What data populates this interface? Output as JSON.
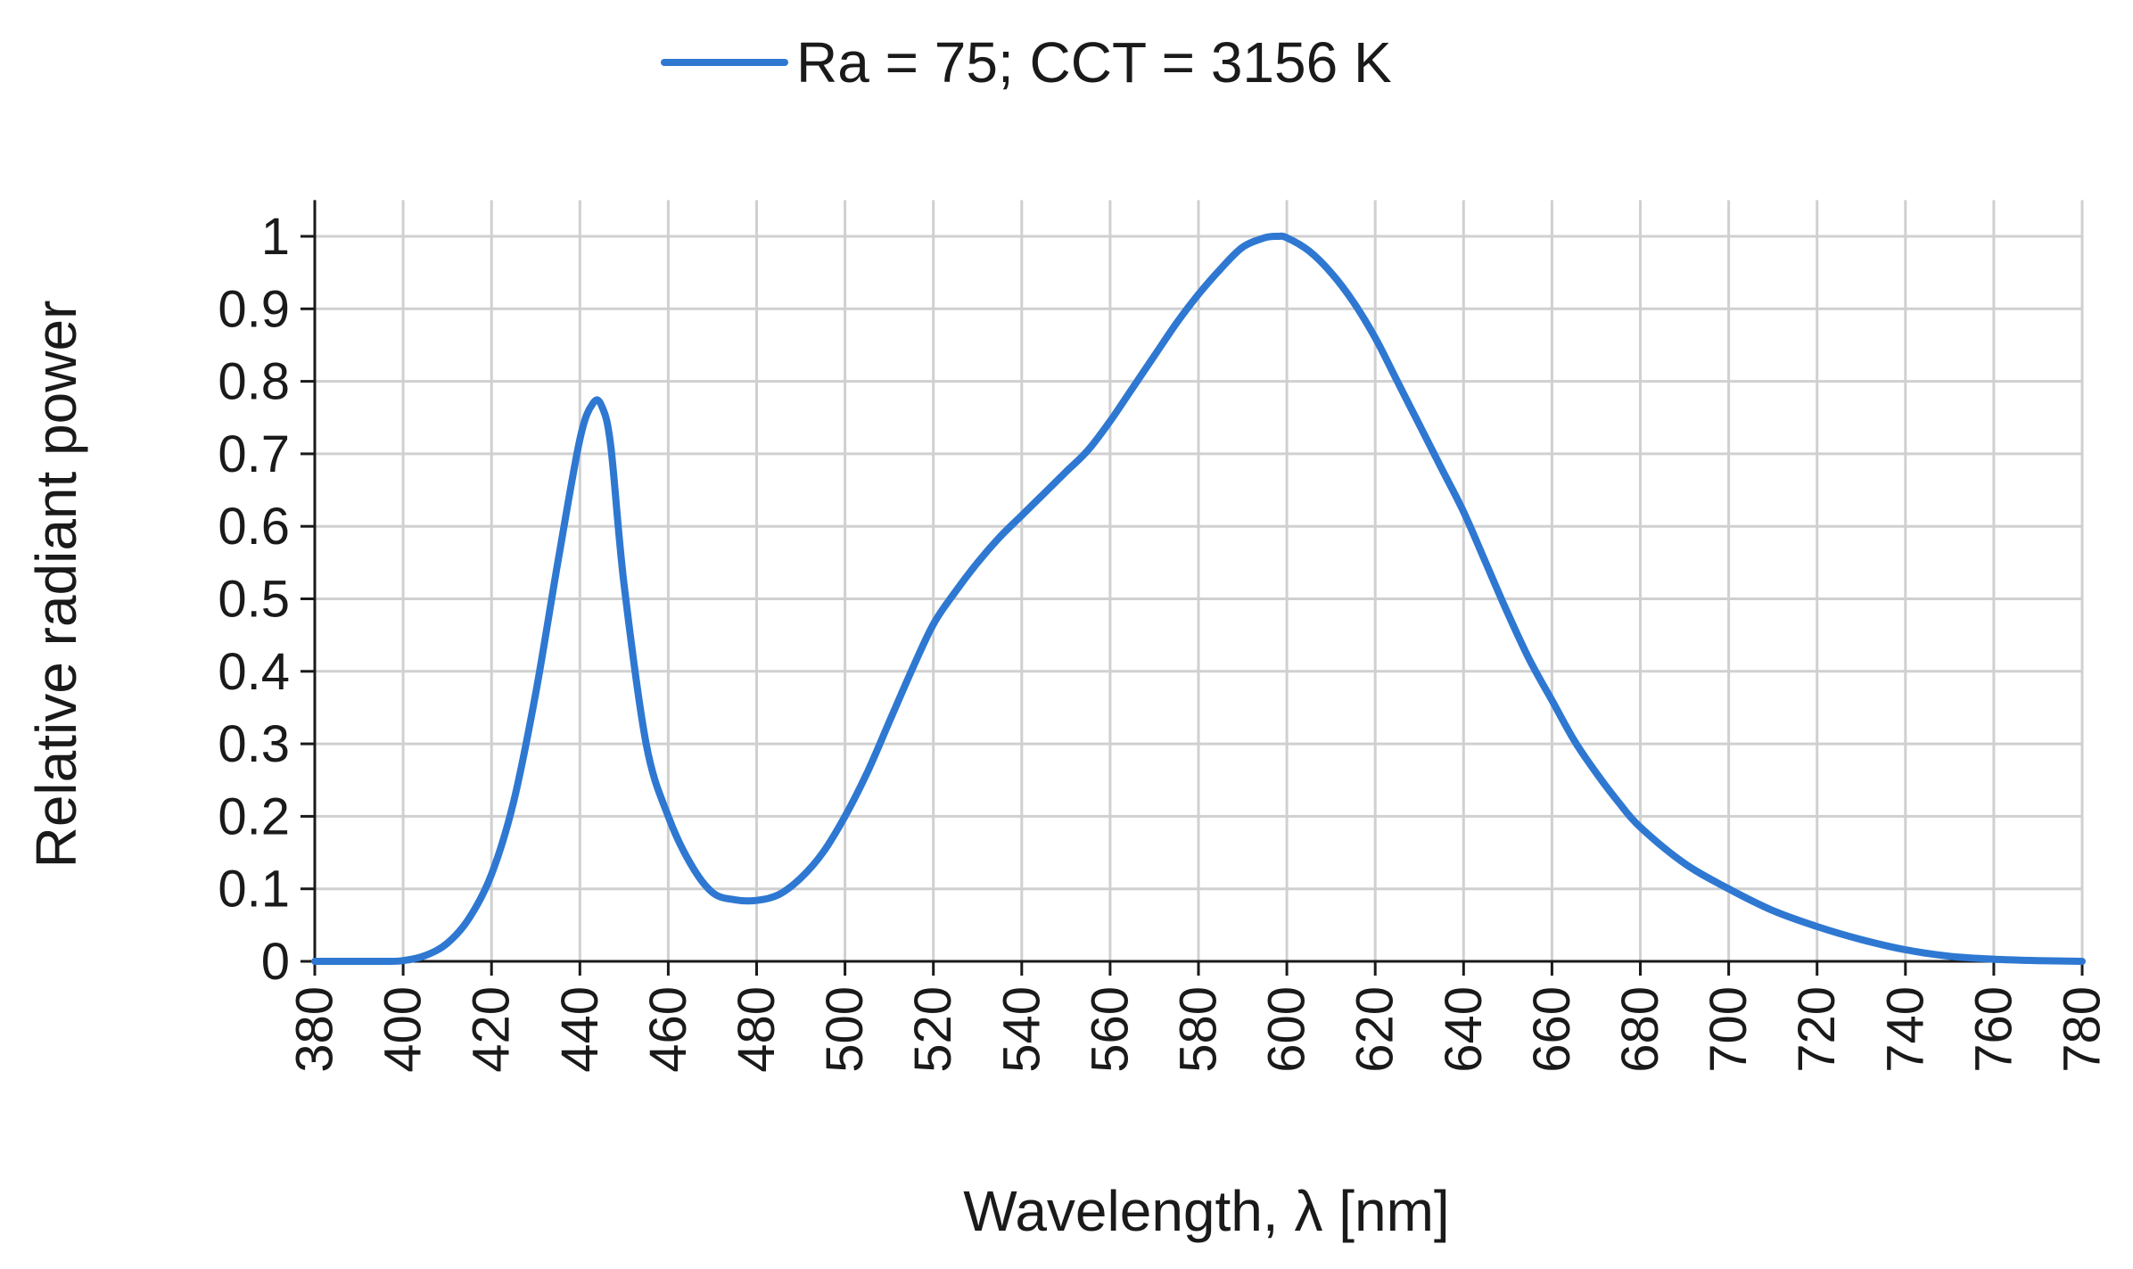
{
  "chart_data": {
    "type": "line",
    "title": "",
    "xlabel": "Wavelength, λ [nm]",
    "ylabel": "Relative radiant power",
    "xlim": [
      380,
      780
    ],
    "ylim": [
      0,
      1.05
    ],
    "xticks": [
      380,
      400,
      420,
      440,
      460,
      480,
      500,
      520,
      540,
      560,
      580,
      600,
      620,
      640,
      660,
      680,
      700,
      720,
      740,
      760,
      780
    ],
    "yticks": [
      0,
      0.1,
      0.2,
      0.3,
      0.4,
      0.5,
      0.6,
      0.7,
      0.8,
      0.9,
      1
    ],
    "ytick_labels": [
      "0",
      "0.1",
      "0.2",
      "0.3",
      "0.4",
      "0.5",
      "0.6",
      "0.7",
      "0.8",
      "0.9",
      "1"
    ],
    "grid": true,
    "legend_position": "top-center",
    "series": [
      {
        "name": "Ra = 75; CCT = 3156 K",
        "color": "#2e78d2",
        "x": [
          380,
          395,
          400,
          405,
          410,
          415,
          420,
          425,
          430,
          435,
          440,
          443,
          445,
          447,
          450,
          455,
          460,
          465,
          470,
          475,
          480,
          485,
          490,
          495,
          500,
          505,
          510,
          515,
          520,
          525,
          530,
          535,
          540,
          545,
          550,
          555,
          560,
          565,
          570,
          575,
          580,
          585,
          590,
          595,
          598,
          600,
          605,
          610,
          615,
          620,
          625,
          630,
          635,
          640,
          645,
          650,
          655,
          660,
          665,
          670,
          675,
          680,
          690,
          700,
          710,
          720,
          730,
          740,
          750,
          760,
          770,
          780
        ],
        "y": [
          0,
          0,
          0.001,
          0.008,
          0.025,
          0.06,
          0.12,
          0.22,
          0.37,
          0.55,
          0.72,
          0.77,
          0.765,
          0.71,
          0.52,
          0.3,
          0.2,
          0.135,
          0.095,
          0.085,
          0.084,
          0.092,
          0.115,
          0.15,
          0.2,
          0.26,
          0.33,
          0.4,
          0.465,
          0.51,
          0.55,
          0.585,
          0.615,
          0.645,
          0.675,
          0.705,
          0.745,
          0.79,
          0.835,
          0.88,
          0.92,
          0.955,
          0.985,
          0.998,
          1.0,
          0.998,
          0.98,
          0.95,
          0.91,
          0.86,
          0.8,
          0.74,
          0.68,
          0.62,
          0.55,
          0.48,
          0.415,
          0.36,
          0.305,
          0.26,
          0.22,
          0.185,
          0.135,
          0.1,
          0.07,
          0.048,
          0.03,
          0.016,
          0.007,
          0.003,
          0.001,
          0
        ]
      }
    ]
  }
}
